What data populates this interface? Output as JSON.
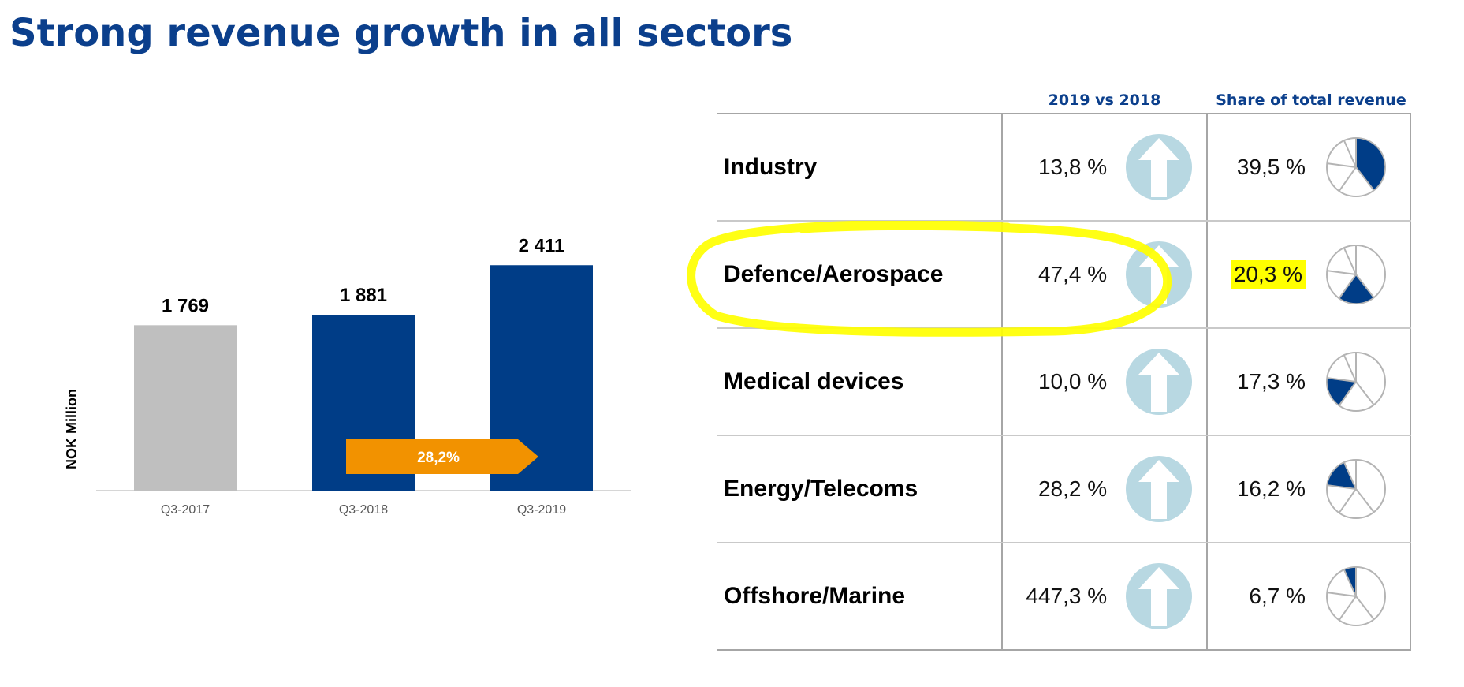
{
  "page": {
    "title": "Strong revenue growth in all sectors"
  },
  "chart_data": [
    {
      "type": "bar",
      "ylabel": "NOK Million",
      "categories": [
        "Q3-2017",
        "Q3-2018",
        "Q3-2019"
      ],
      "values": [
        1769,
        1881,
        2411
      ],
      "data_labels": [
        "1 769",
        "1 881",
        "2 411"
      ],
      "bar_colors": [
        "#bfbfbf",
        "#003d87",
        "#003d87"
      ],
      "ylim": [
        0,
        2700
      ],
      "grid": false,
      "annotation": {
        "label": "28,2%",
        "color": "#f29200",
        "from_category": "Q3-2018",
        "to_category": "Q3-2019"
      }
    },
    {
      "type": "table",
      "columns": [
        "",
        "2019 vs 2018",
        "Share of total revenue"
      ],
      "rows": [
        {
          "sector": "Industry",
          "growth": "13,8 %",
          "share": "39,5 %",
          "share_value": 39.5,
          "share_offset": 0,
          "highlighted": false
        },
        {
          "sector": "Defence/Aerospace",
          "growth": "47,4 %",
          "share": "20,3 %",
          "share_value": 20.3,
          "share_offset": 39.5,
          "highlighted": true
        },
        {
          "sector": "Medical devices",
          "growth": "10,0 %",
          "share": "17,3 %",
          "share_value": 17.3,
          "share_offset": 59.8,
          "highlighted": false
        },
        {
          "sector": "Energy/Telecoms",
          "growth": "28,2 %",
          "share": "16,2 %",
          "share_value": 16.2,
          "share_offset": 77.1,
          "highlighted": false
        },
        {
          "sector": "Offshore/Marine",
          "growth": "447,3 %",
          "share": "6,7 %",
          "share_value": 6.7,
          "share_offset": 93.3,
          "highlighted": false
        }
      ],
      "arrow_icon": "up-arrow-icon",
      "arrow_color": "#b8d8e2",
      "pie_icon": "pie-chart-icon",
      "pie_accent_color": "#003d87",
      "highlight_color": "#ffff00"
    }
  ]
}
